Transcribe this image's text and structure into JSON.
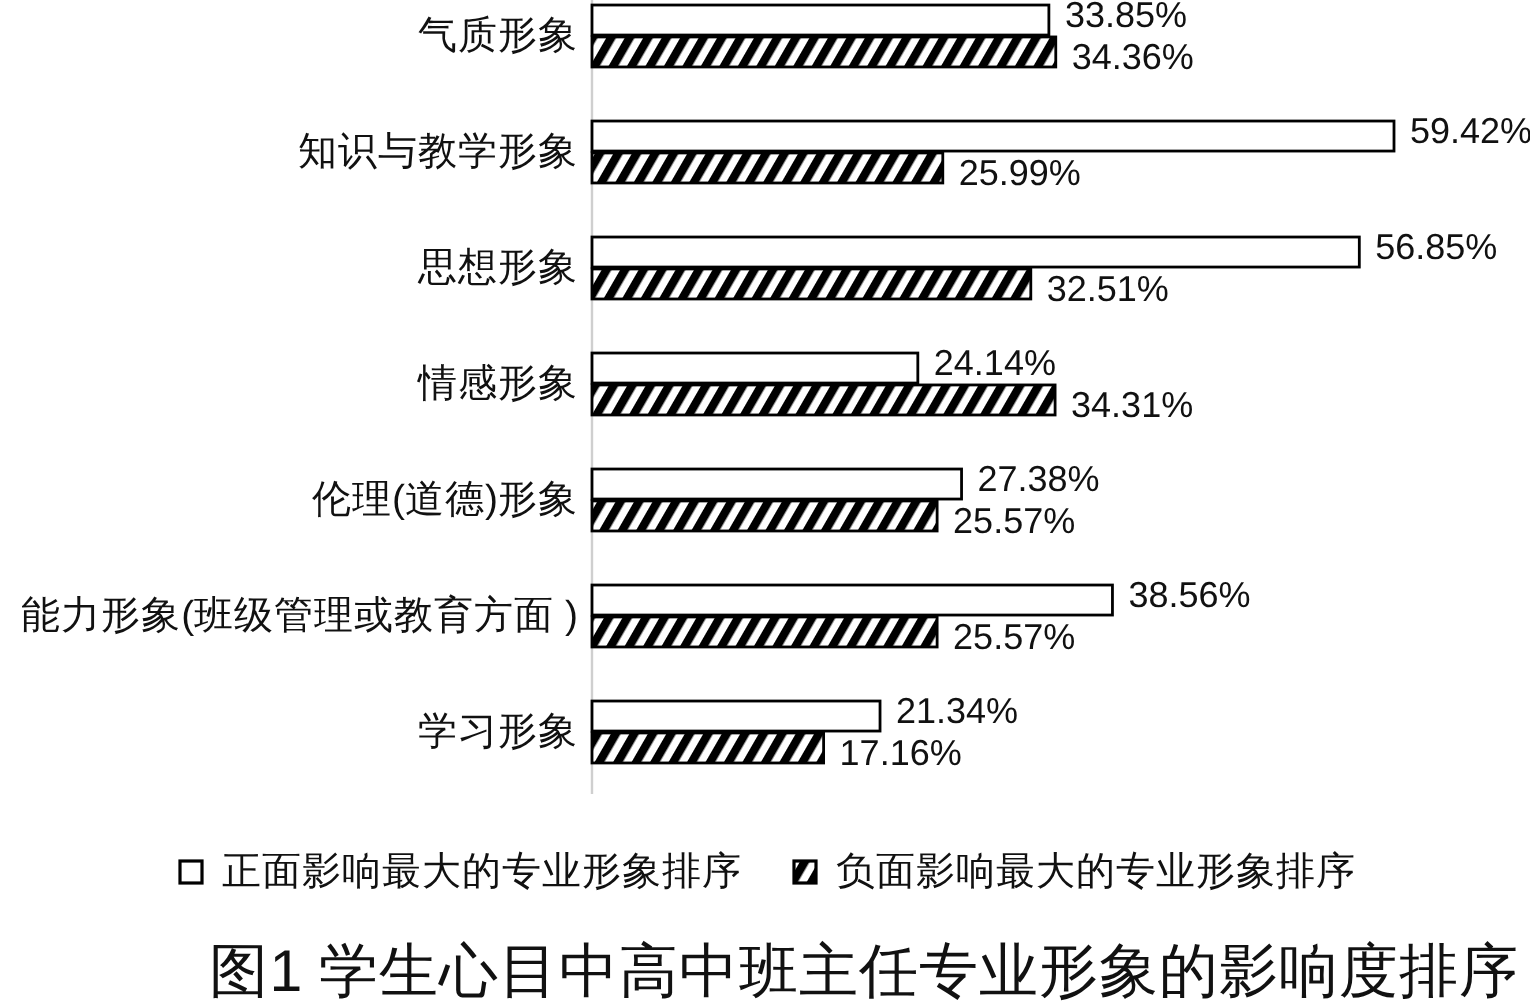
{
  "chart_data": {
    "type": "bar",
    "orientation": "horizontal",
    "title": "图1 学生心目中高中班主任专业形象的影响度排序",
    "categories": [
      "气质形象",
      "知识与教学形象",
      "思想形象",
      "情感形象",
      "伦理(道德)形象",
      "能力形象(班级管理或教育方面 )",
      "学习形象"
    ],
    "series": [
      {
        "name": "正面影响最大的专业形象排序",
        "color": "#ffffff",
        "values": [
          33.85,
          59.42,
          56.85,
          24.14,
          27.38,
          38.56,
          21.34
        ],
        "value_labels": [
          "33.85%",
          "59.42%",
          "56.85%",
          "24.14%",
          "27.38%",
          "38.56%",
          "21.34%"
        ]
      },
      {
        "name": "负面影响最大的专业形象排序",
        "color": "#000000",
        "values": [
          34.36,
          25.99,
          32.51,
          34.31,
          25.57,
          25.57,
          17.16
        ],
        "value_labels": [
          "34.36%",
          "25.99%",
          "32.51%",
          "34.31%",
          "25.57%",
          "25.57%",
          "17.16%"
        ]
      }
    ],
    "legend": "bottom",
    "tick_labels": "y"
  }
}
